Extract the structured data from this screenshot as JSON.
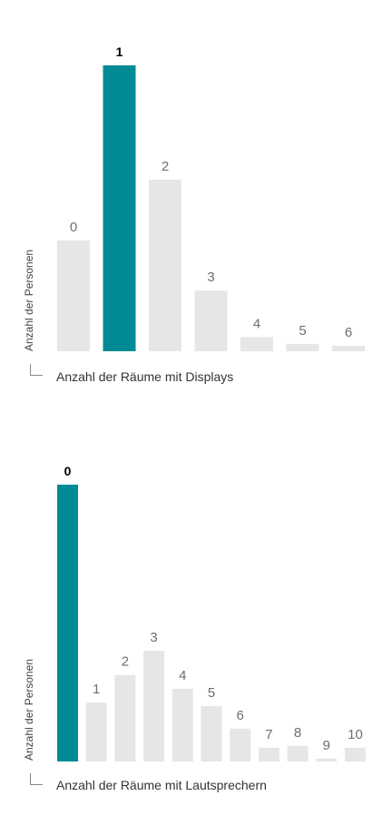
{
  "colors": {
    "highlight": "#008b94",
    "bar": "#e6e6e6",
    "label": "#6e6e6e",
    "highlight_label": "#000000"
  },
  "chart_data": [
    {
      "type": "bar",
      "categories": [
        "0",
        "1",
        "2",
        "3",
        "4",
        "5",
        "6"
      ],
      "values": [
        31,
        80,
        48,
        17,
        4,
        2,
        1.5
      ],
      "highlight_index": 1,
      "title": "",
      "xlabel": "Anzahl der Räume mit Displays",
      "ylabel": "Anzahl der Personen",
      "grid": false,
      "legend": "none"
    },
    {
      "type": "bar",
      "categories": [
        "0",
        "1",
        "2",
        "3",
        "4",
        "5",
        "6",
        "7",
        "8",
        "9",
        "10"
      ],
      "values": [
        80,
        17,
        25,
        32,
        21,
        16,
        9.5,
        4,
        4.5,
        0.8,
        4
      ],
      "highlight_index": 0,
      "title": "",
      "xlabel": "Anzahl der Räume mit Lautsprechern",
      "ylabel": "Anzahl der Personen",
      "grid": false,
      "legend": "none"
    }
  ]
}
